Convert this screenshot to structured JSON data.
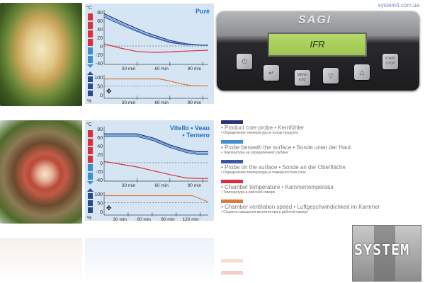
{
  "url": "system4.com.ua",
  "device": {
    "logo": "SAGI",
    "display": "IFR",
    "buttons": [
      {
        "name": "power",
        "label": "⏻"
      },
      {
        "name": "enter",
        "label": "↵"
      },
      {
        "name": "menu-esc",
        "label": "MENU ESC"
      },
      {
        "name": "down",
        "label": "▽"
      },
      {
        "name": "up",
        "label": "△"
      },
      {
        "name": "start-stop",
        "label": "START STOP"
      }
    ]
  },
  "chart_data": [
    {
      "type": "line",
      "title": "Purè",
      "temp_unit": "°C",
      "vent_unit": "%",
      "upper": {
        "ylim": [
          -40,
          80
        ],
        "yticks": [
          80,
          60,
          40,
          20,
          0,
          -20,
          -40
        ],
        "xlim": [
          0,
          95
        ],
        "xticks": [
          "30 min",
          "60 min",
          "90 min"
        ],
        "xtick_values": [
          30,
          60,
          90
        ],
        "series": [
          {
            "color": "#2a2f7a",
            "x": [
              0,
              20,
              40,
              60,
              75,
              90,
              95
            ],
            "y": [
              76,
              52,
              30,
              13,
              5,
              2,
              2
            ]
          },
          {
            "color": "#3e8fcf",
            "x": [
              0,
              20,
              40,
              60,
              75,
              90,
              95
            ],
            "y": [
              72,
              48,
              26,
              10,
              4,
              2,
              2
            ]
          },
          {
            "color": "#3a56a5",
            "x": [
              0,
              20,
              40,
              60,
              75,
              90,
              95
            ],
            "y": [
              68,
              45,
              24,
              8,
              3,
              2,
              2
            ]
          },
          {
            "color": "#d9303a",
            "x": [
              0,
              15,
              30,
              45,
              60,
              75,
              95
            ],
            "y": [
              5,
              -5,
              -13,
              -15,
              -14,
              -12,
              -10
            ]
          }
        ]
      },
      "lower": {
        "ylim": [
          0,
          100
        ],
        "yticks": [
          100,
          50,
          0
        ],
        "xlim": [
          0,
          95
        ],
        "xticks": [
          "30 min",
          "60 min",
          "90 min"
        ],
        "xtick_values": [
          30,
          60,
          90
        ],
        "series": [
          {
            "color": "#e07a3a",
            "x": [
              0,
              50,
              60,
              70,
              80,
              95
            ],
            "y": [
              90,
              90,
              78,
              62,
              52,
              50
            ]
          }
        ]
      }
    },
    {
      "type": "line",
      "title": [
        "Vitello • Veau",
        "• Ternero"
      ],
      "temp_unit": "°C",
      "vent_unit": "%",
      "upper": {
        "ylim": [
          -40,
          80
        ],
        "yticks": [
          80,
          60,
          40,
          20,
          0,
          -20,
          -40
        ],
        "xlim": [
          0,
          95
        ],
        "xticks": [
          "30 min",
          "60 min",
          "90 min"
        ],
        "xtick_values": [
          30,
          60,
          90
        ],
        "series": [
          {
            "color": "#2a2f7a",
            "x": [
              0,
              30,
              45,
              60,
              75,
              85,
              95
            ],
            "y": [
              68,
              68,
              58,
              42,
              30,
              26,
              26
            ]
          },
          {
            "color": "#3e8fcf",
            "x": [
              0,
              30,
              45,
              60,
              75,
              85,
              95
            ],
            "y": [
              65,
              65,
              55,
              39,
              27,
              23,
              23
            ]
          },
          {
            "color": "#3a56a5",
            "x": [
              0,
              30,
              45,
              60,
              75,
              85,
              95
            ],
            "y": [
              62,
              62,
              52,
              36,
              24,
              20,
              20
            ]
          },
          {
            "color": "#d9303a",
            "x": [
              0,
              30,
              60,
              75,
              85,
              95
            ],
            "y": [
              3,
              -10,
              -28,
              -36,
              -37,
              -37
            ]
          }
        ]
      },
      "lower": {
        "ylim": [
          0,
          100
        ],
        "yticks": [
          100,
          50,
          0
        ],
        "xlim": [
          0,
          130
        ],
        "xticks": [
          "30 min",
          "60 min",
          "90 min",
          "120 min"
        ],
        "xtick_values": [
          30,
          60,
          90,
          120
        ],
        "series": [
          {
            "color": "#e07a3a",
            "x": [
              0,
              110,
              130
            ],
            "y": [
              90,
              90,
              55
            ]
          }
        ]
      }
    }
  ],
  "legend": [
    {
      "color": "#2a2f7a",
      "en": "• Product core probe • Kernfühler",
      "ru": "• Определение температуры в толще продукта"
    },
    {
      "color": "#3e8fcf",
      "en": "• Probe beneath the surface • Sonde unter der Haut",
      "ru": "• Температура на определенной глубине"
    },
    {
      "color": "#3a56a5",
      "en": "• Probe on the surface • Sonde an der Oberfläche",
      "ru": "• Определение температуры в поверхностном слое"
    },
    {
      "color": "#d9303a",
      "en": "• Chamber temperature • Kammertemperatur",
      "ru": "• Температура в рабочей камере"
    },
    {
      "color": "#e07a3a",
      "en": "• Chamber ventilation speed • Luftgeschwindichkeit im Kammer",
      "ru": "• Скорость вращения вентилятора в рабочей камере"
    }
  ],
  "watermark": "SYSTEM"
}
